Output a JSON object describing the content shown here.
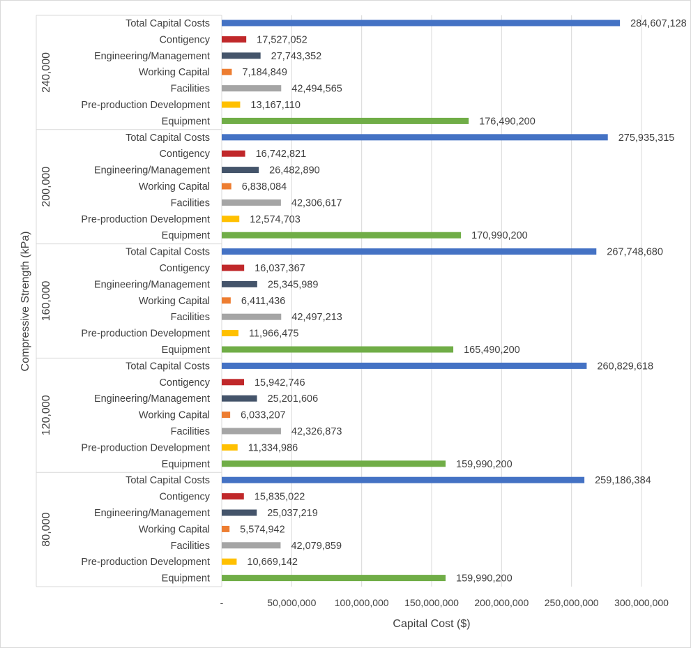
{
  "chart_data": {
    "type": "bar",
    "orientation": "horizontal",
    "title": "",
    "xlabel": "Capital Cost ($)",
    "ylabel": "Compressive Strength (kPa)",
    "xlim": [
      0,
      300000000
    ],
    "x_ticks": [
      {
        "value": 0,
        "label": "-"
      },
      {
        "value": 50000000,
        "label": "50,000,000"
      },
      {
        "value": 100000000,
        "label": "100,000,000"
      },
      {
        "value": 150000000,
        "label": "150,000,000"
      },
      {
        "value": 200000000,
        "label": "200,000,000"
      },
      {
        "value": 250000000,
        "label": "250,000,000"
      },
      {
        "value": 300000000,
        "label": "300,000,000"
      }
    ],
    "grid": true,
    "categories": [
      "Total Capital Costs",
      "Contigency",
      "Engineering/Management",
      "Working Capital",
      "Facilities",
      "Pre-production Development",
      "Equipment"
    ],
    "category_colors": [
      "#4472c4",
      "#c0282a",
      "#44546a",
      "#ed7d31",
      "#a5a5a5",
      "#ffc000",
      "#70ad47"
    ],
    "groups": [
      {
        "name": "240,000",
        "values": [
          284607128,
          17527052,
          27743352,
          7184849,
          42494565,
          13167110,
          176490200
        ],
        "labels": [
          "284,607,128",
          "17,527,052",
          "27,743,352",
          "7,184,849",
          "42,494,565",
          "13,167,110",
          "176,490,200"
        ]
      },
      {
        "name": "200,000",
        "values": [
          275935315,
          16742821,
          26482890,
          6838084,
          42306617,
          12574703,
          170990200
        ],
        "labels": [
          "275,935,315",
          "16,742,821",
          "26,482,890",
          "6,838,084",
          "42,306,617",
          "12,574,703",
          "170,990,200"
        ]
      },
      {
        "name": "160,000",
        "values": [
          267748680,
          16037367,
          25345989,
          6411436,
          42497213,
          11966475,
          165490200
        ],
        "labels": [
          "267,748,680",
          "16,037,367",
          "25,345,989",
          "6,411,436",
          "42,497,213",
          "11,966,475",
          "165,490,200"
        ]
      },
      {
        "name": "120,000",
        "values": [
          260829618,
          15942746,
          25201606,
          6033207,
          42326873,
          11334986,
          159990200
        ],
        "labels": [
          "260,829,618",
          "15,942,746",
          "25,201,606",
          "6,033,207",
          "42,326,873",
          "11,334,986",
          "159,990,200"
        ]
      },
      {
        "name": "80,000",
        "values": [
          259186384,
          15835022,
          25037219,
          5574942,
          42079859,
          10669142,
          159990200
        ],
        "labels": [
          "259,186,384",
          "15,835,022",
          "25,037,219",
          "5,574,942",
          "42,079,859",
          "10,669,142",
          "159,990,200"
        ]
      }
    ]
  }
}
